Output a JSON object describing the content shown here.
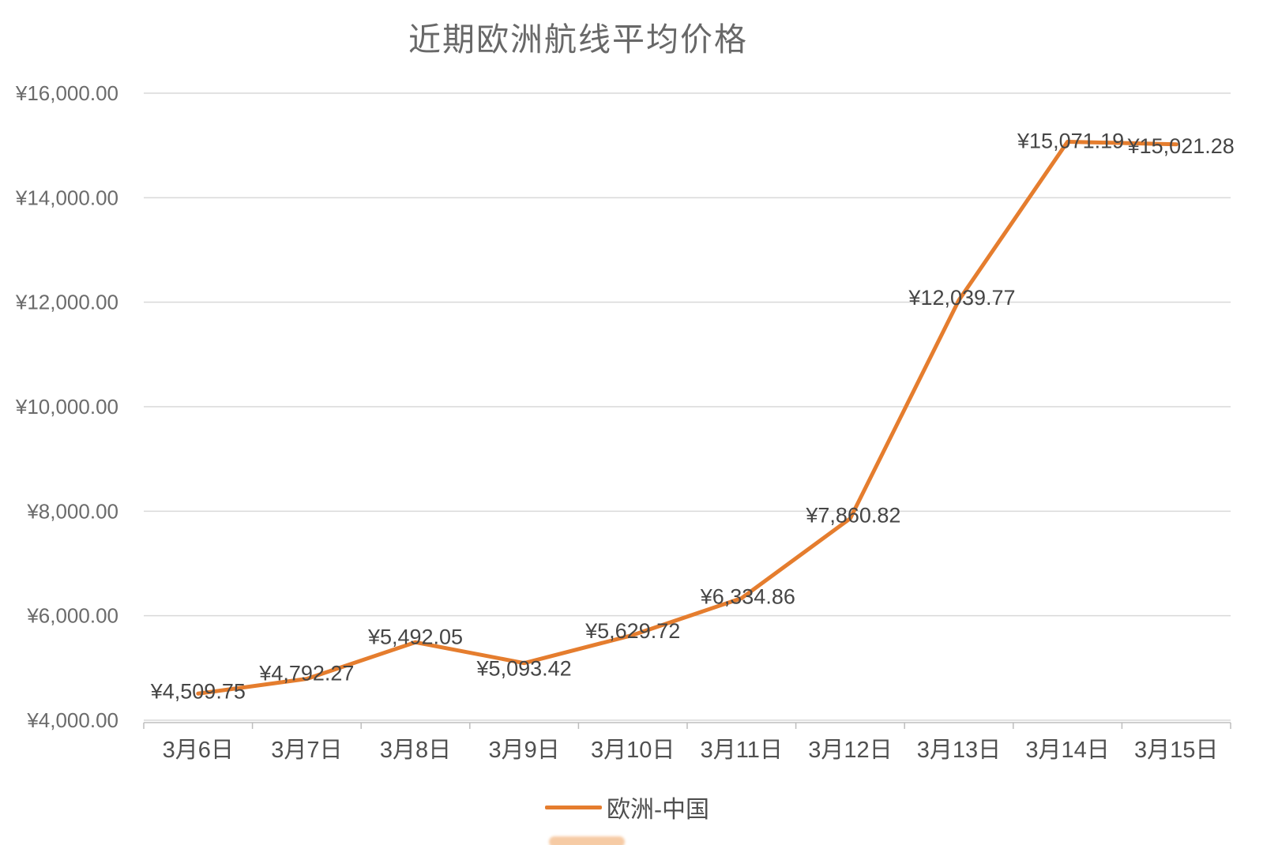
{
  "chart_data": {
    "type": "line",
    "title": "近期欧洲航线平均价格",
    "categories": [
      "3月6日",
      "3月7日",
      "3月8日",
      "3月9日",
      "3月10日",
      "3月11日",
      "3月12日",
      "3月13日",
      "3月14日",
      "3月15日"
    ],
    "series": [
      {
        "name": "欧洲-中国",
        "values": [
          4509.75,
          4792.27,
          5492.05,
          5093.42,
          5629.72,
          6334.86,
          7860.82,
          12039.77,
          15071.19,
          15021.28
        ],
        "labels": [
          "¥4,509.75",
          "¥4,792.27",
          "¥5,492.05",
          "¥5,093.42",
          "¥5,629.72",
          "¥6,334.86",
          "¥7,860.82",
          "¥12,039.77",
          "¥15,071.19",
          "¥15,021.28"
        ],
        "color": "#e57d2e"
      }
    ],
    "ylim": [
      4000,
      16000
    ],
    "ytick_step": 2000,
    "ytick_labels": [
      "¥4,000.00",
      "¥6,000.00",
      "¥8,000.00",
      "¥10,000.00",
      "¥12,000.00",
      "¥14,000.00",
      "¥16,000.00"
    ],
    "grid": true,
    "legend_position": "bottom",
    "colors": {
      "series": "#e57d2e",
      "gridline": "#d9d9d9",
      "axis": "#bdbdbd",
      "title_text": "#686868",
      "axis_text": "#6b6b6b",
      "data_label_text": "#454545"
    },
    "data_label_position": "center"
  }
}
